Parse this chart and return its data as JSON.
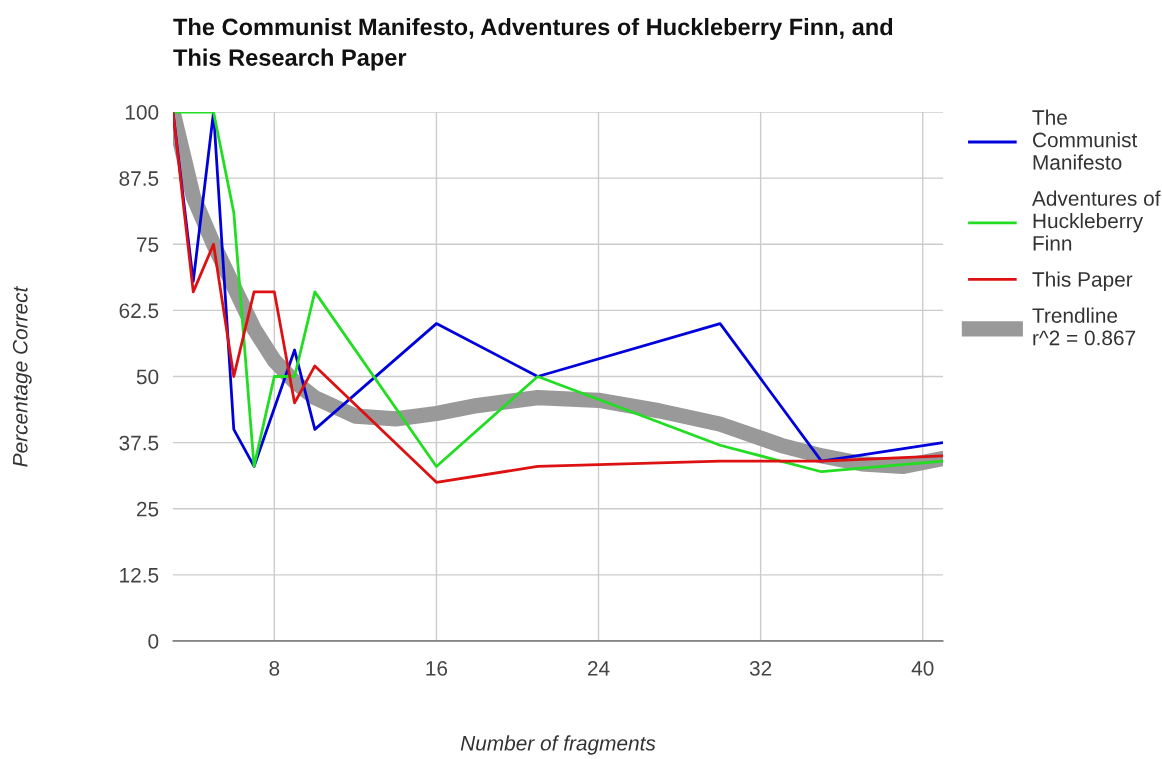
{
  "chart_data": {
    "type": "line",
    "title": "The Communist Manifesto, Adventures of Huckleberry Finn, and\nThis Research Paper",
    "xlabel": "Number of fragments",
    "ylabel": "Percentage Correct",
    "x": [
      3,
      4,
      5,
      6,
      7,
      8,
      9,
      10,
      16,
      21,
      30,
      35,
      41
    ],
    "series": [
      {
        "name": "The\nCommunist\nManifesto",
        "color": "#0000dd",
        "values": [
          100,
          68,
          100,
          40,
          33,
          44,
          55,
          40,
          60,
          50,
          60,
          34,
          37.5
        ]
      },
      {
        "name": "Adventures of\nHuckleberry\nFinn",
        "color": "#22dd22",
        "values": [
          100,
          100,
          100,
          81,
          33,
          50,
          50,
          66,
          33,
          50,
          37,
          32,
          34
        ]
      },
      {
        "name": "This Paper",
        "color": "#dd1111",
        "values": [
          100,
          66,
          75,
          50,
          66,
          66,
          45,
          52,
          30,
          33,
          34,
          34,
          35
        ]
      },
      {
        "name": "Trendline\nr^2 = 0.867",
        "type": "line",
        "color": "#999999",
        "x": [
          3,
          4,
          5,
          6,
          7,
          8,
          9,
          10,
          12,
          14,
          16,
          18,
          21,
          24,
          27,
          30,
          33,
          35,
          37,
          39,
          41
        ],
        "values": [
          100,
          84,
          75,
          67,
          59,
          53,
          49,
          46,
          42.5,
          42,
          43,
          44.5,
          46,
          45.5,
          43.5,
          41,
          37,
          35,
          33.5,
          33,
          34.5
        ]
      }
    ],
    "xlim": [
      3,
      41
    ],
    "xticks": [
      8,
      16,
      24,
      32,
      40
    ],
    "ylim": [
      0,
      100
    ],
    "yticks": [
      0,
      12.5,
      25,
      37.5,
      50,
      62.5,
      75,
      87.5,
      100
    ],
    "grid": true,
    "legend": "right"
  }
}
